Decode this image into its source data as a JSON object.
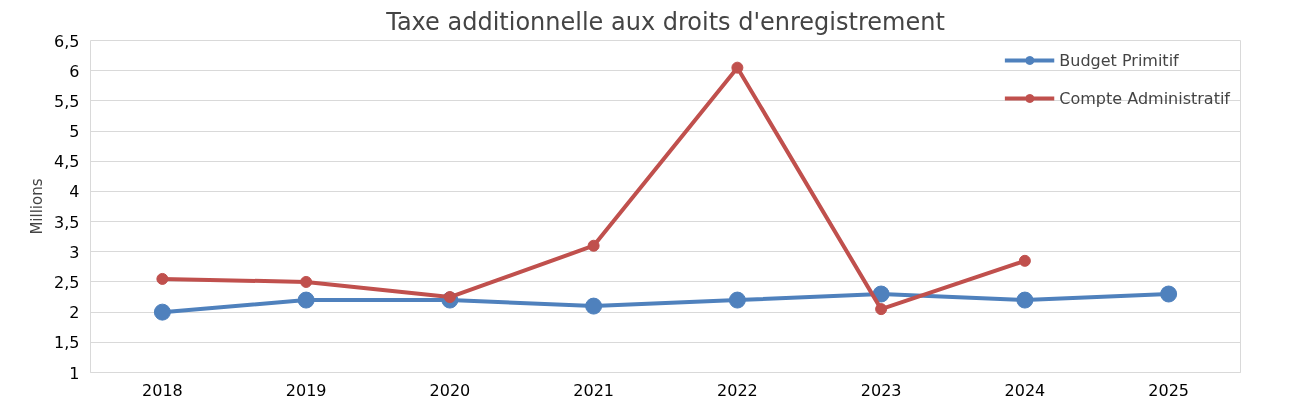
{
  "chart_data": {
    "type": "line",
    "title": "Taxe additionnelle aux droits d'enregistrement",
    "ylabel": "Millions",
    "categories": [
      "2018",
      "2019",
      "2020",
      "2021",
      "2022",
      "2023",
      "2024",
      "2025"
    ],
    "series": [
      {
        "name": "Budget Primitif",
        "color": "#4f81bd",
        "values": [
          2.0,
          2.2,
          2.2,
          2.1,
          2.2,
          2.3,
          2.2,
          2.3
        ]
      },
      {
        "name": "Compte Administratif",
        "color": "#c0504d",
        "values": [
          2.55,
          2.5,
          2.25,
          3.1,
          6.05,
          2.05,
          2.85,
          null
        ]
      }
    ],
    "ylim": [
      1,
      6.5
    ],
    "yticks": [
      1,
      {
        "value": 1.5,
        "label": "1,5"
      },
      2,
      {
        "value": 2.5,
        "label": "2,5"
      },
      3,
      {
        "value": 3.5,
        "label": "3,5"
      },
      4,
      {
        "value": 4.5,
        "label": "4,5"
      },
      5,
      {
        "value": 5.5,
        "label": "5,5"
      },
      6,
      {
        "value": 6.5,
        "label": "6,5"
      }
    ],
    "grid": "y",
    "legend": "top right",
    "marker": "circle",
    "line_style": "solid"
  }
}
